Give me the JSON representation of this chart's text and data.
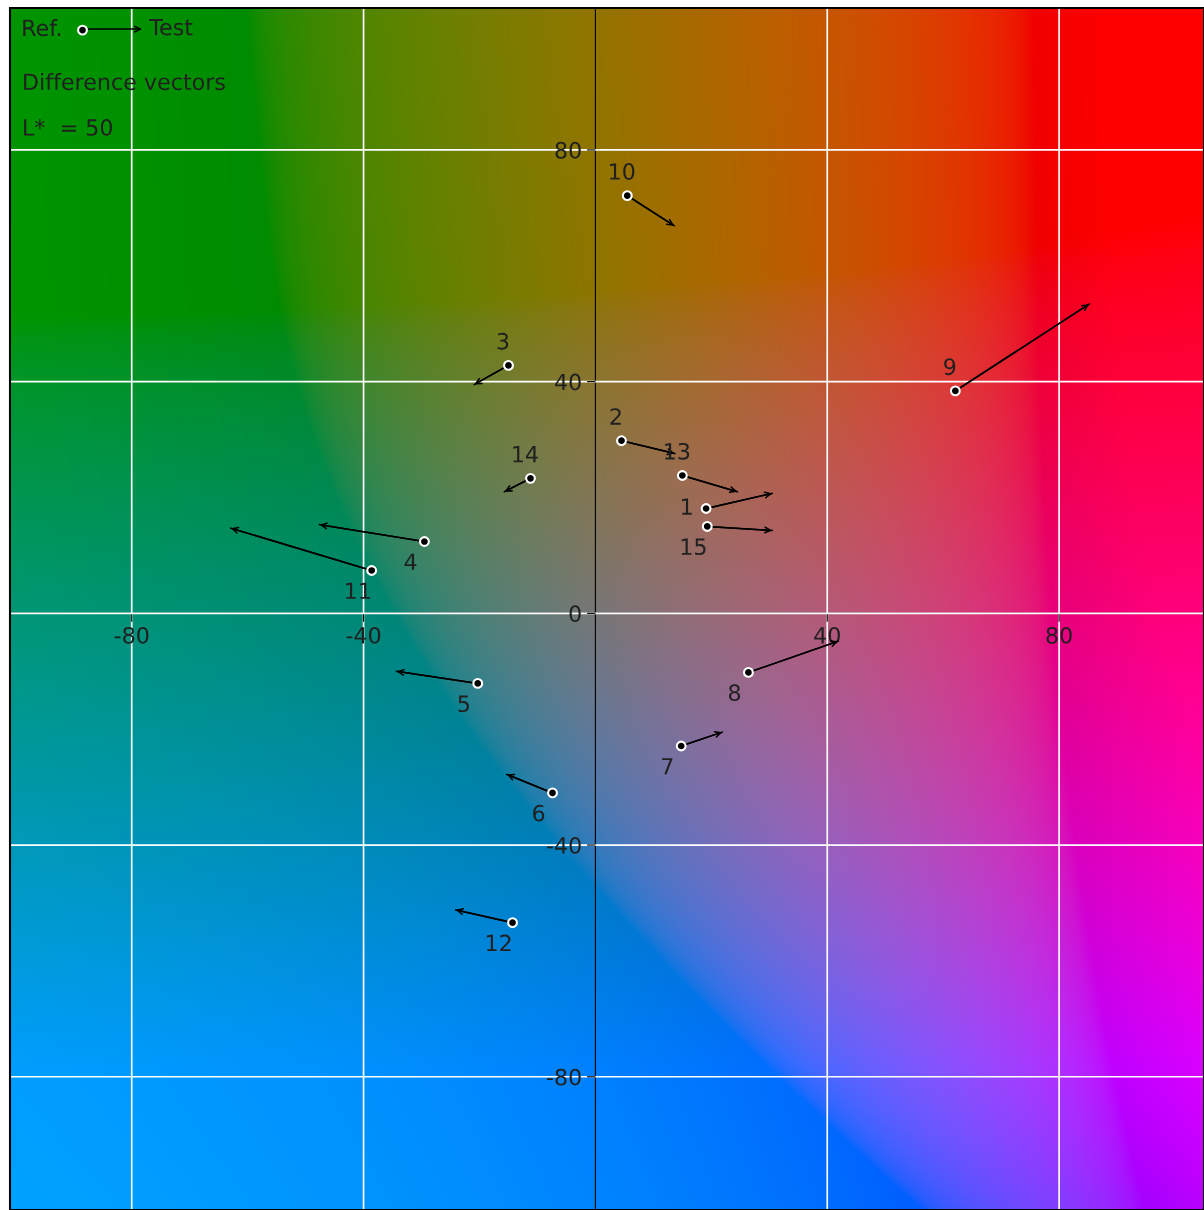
{
  "chart_data": {
    "type": "scatter",
    "xlim": [
      -101,
      105
    ],
    "ylim": [
      -103,
      104.5
    ],
    "xticks": [
      -80,
      -40,
      40,
      80
    ],
    "yticks": [
      80,
      40,
      0,
      -40,
      -80
    ],
    "grid": true,
    "legend": "top left",
    "series": [
      {
        "name": "Ref.",
        "marker": "circle",
        "color": "#000000",
        "x": [
          19.1,
          4.5,
          -15.0,
          -29.5,
          -20.3,
          -7.4,
          14.8,
          26.4,
          62.1,
          5.5,
          -38.6,
          -14.3,
          15.0,
          -11.2,
          19.3
        ],
        "values": [
          18.1,
          29.8,
          42.8,
          12.4,
          -12.1,
          -31.0,
          -22.9,
          -10.2,
          38.4,
          72.1,
          7.4,
          -53.4,
          23.8,
          23.3,
          15.0
        ]
      },
      {
        "type": "line",
        "color": "#000000",
        "x": [
          19.1,
          30.5
        ],
        "values": [
          18.1,
          20.7
        ]
      },
      {
        "type": "line",
        "color": "#000000",
        "x": [
          4.5,
          13.7
        ],
        "values": [
          29.8,
          27.6
        ]
      },
      {
        "type": "line",
        "color": "#000000",
        "x": [
          -15.0,
          -20.9
        ],
        "values": [
          42.8,
          39.5
        ]
      },
      {
        "type": "line",
        "color": "#000000",
        "x": [
          -29.5,
          -47.6
        ],
        "values": [
          12.4,
          15.3
        ]
      },
      {
        "type": "line",
        "color": "#000000",
        "x": [
          -20.3,
          -34.3
        ],
        "values": [
          -12.1,
          -10.0
        ]
      },
      {
        "type": "line",
        "color": "#000000",
        "x": [
          -7.4,
          -15.3
        ],
        "values": [
          -31.0,
          -27.8
        ]
      },
      {
        "type": "line",
        "color": "#000000",
        "x": [
          14.8,
          21.9
        ],
        "values": [
          -22.9,
          -20.5
        ]
      },
      {
        "type": "line",
        "color": "#000000",
        "x": [
          26.4,
          41.9
        ],
        "values": [
          -10.2,
          -4.8
        ]
      },
      {
        "type": "line",
        "color": "#000000",
        "x": [
          62.1,
          85.2
        ],
        "values": [
          38.4,
          53.4
        ]
      },
      {
        "type": "line",
        "color": "#000000",
        "x": [
          5.5,
          13.6
        ],
        "values": [
          72.1,
          66.9
        ]
      },
      {
        "type": "line",
        "color": "#000000",
        "x": [
          -38.6,
          -62.9
        ],
        "values": [
          7.4,
          14.7
        ]
      },
      {
        "type": "line",
        "color": "#000000",
        "x": [
          -14.3,
          -24.1
        ],
        "values": [
          -53.4,
          -51.2
        ]
      },
      {
        "type": "line",
        "color": "#000000",
        "x": [
          15.0,
          24.5
        ],
        "values": [
          23.8,
          21.0
        ]
      },
      {
        "type": "line",
        "color": "#000000",
        "x": [
          -11.2,
          -15.7
        ],
        "values": [
          23.3,
          21.0
        ]
      },
      {
        "type": "line",
        "color": "#000000",
        "x": [
          19.3,
          30.5
        ],
        "values": [
          15.0,
          14.3
        ]
      }
    ],
    "annotations": [
      {
        "text": "1",
        "x": 19.1,
        "y": 18.1
      },
      {
        "text": "2",
        "x": 4.5,
        "y": 29.8
      },
      {
        "text": "3",
        "x": -15.0,
        "y": 42.8
      },
      {
        "text": "4",
        "x": -29.5,
        "y": 12.4
      },
      {
        "text": "5",
        "x": -20.3,
        "y": -12.1
      },
      {
        "text": "6",
        "x": -7.4,
        "y": -31.0
      },
      {
        "text": "7",
        "x": 14.8,
        "y": -22.9
      },
      {
        "text": "8",
        "x": 26.4,
        "y": -10.2
      },
      {
        "text": "9",
        "x": 62.1,
        "y": 38.4
      },
      {
        "text": "10",
        "x": 5.5,
        "y": 72.1
      },
      {
        "text": "11",
        "x": -38.6,
        "y": 7.4
      },
      {
        "text": "12",
        "x": -14.3,
        "y": -53.4
      },
      {
        "text": "13",
        "x": 15.0,
        "y": 23.8
      },
      {
        "text": "14",
        "x": -11.2,
        "y": 23.3
      },
      {
        "text": "15",
        "x": 19.3,
        "y": 15.0
      },
      "Test",
      "Difference vectors",
      "L*  = 50"
    ]
  }
}
